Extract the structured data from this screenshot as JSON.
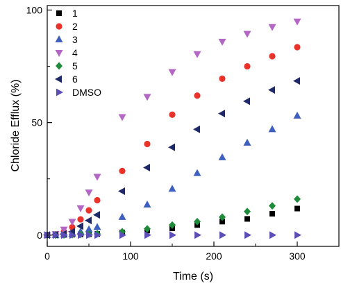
{
  "chart_data": {
    "type": "scatter",
    "title": "",
    "xlabel": "Time (s)",
    "ylabel": "Chloride Efflux (%)",
    "xlim": [
      0,
      350
    ],
    "ylim": [
      -5,
      102
    ],
    "x_ticks": [
      0,
      100,
      200,
      300
    ],
    "y_ticks": [
      0,
      50,
      100
    ],
    "x_minor_step": 50,
    "y_minor_step": 25,
    "grid": false,
    "legend_position": "top-left",
    "series": [
      {
        "name": "1",
        "marker": "square",
        "color": "#000000",
        "points": [
          [
            0,
            0
          ],
          [
            10,
            0
          ],
          [
            20,
            0.1
          ],
          [
            30,
            0.2
          ],
          [
            40,
            0.3
          ],
          [
            50,
            0.4
          ],
          [
            60,
            0.5
          ],
          [
            90,
            1.2
          ],
          [
            120,
            2
          ],
          [
            150,
            3
          ],
          [
            180,
            4.5
          ],
          [
            210,
            6
          ],
          [
            240,
            7.2
          ],
          [
            270,
            9.5
          ],
          [
            300,
            11.8
          ]
        ]
      },
      {
        "name": "2",
        "marker": "circle",
        "color": "#e8322a",
        "points": [
          [
            0,
            0
          ],
          [
            10,
            0.3
          ],
          [
            20,
            1.5
          ],
          [
            30,
            3.5
          ],
          [
            40,
            7
          ],
          [
            50,
            11
          ],
          [
            60,
            15.5
          ],
          [
            90,
            28.5
          ],
          [
            120,
            40.5
          ],
          [
            150,
            53.5
          ],
          [
            180,
            62
          ],
          [
            210,
            69.5
          ],
          [
            240,
            75
          ],
          [
            270,
            79.5
          ],
          [
            300,
            83.5
          ]
        ]
      },
      {
        "name": "3",
        "marker": "triangle-up",
        "color": "#3f5fbf",
        "points": [
          [
            0,
            0
          ],
          [
            10,
            0
          ],
          [
            20,
            0.2
          ],
          [
            30,
            0.5
          ],
          [
            40,
            1.5
          ],
          [
            50,
            2.5
          ],
          [
            60,
            3.5
          ],
          [
            90,
            8
          ],
          [
            120,
            13.5
          ],
          [
            150,
            20.5
          ],
          [
            180,
            27.5
          ],
          [
            210,
            34.5
          ],
          [
            240,
            41
          ],
          [
            270,
            47
          ],
          [
            300,
            53
          ]
        ]
      },
      {
        "name": "4",
        "marker": "triangle-down",
        "color": "#b466c4",
        "points": [
          [
            0,
            0
          ],
          [
            10,
            0.5
          ],
          [
            20,
            2.5
          ],
          [
            30,
            6
          ],
          [
            40,
            12
          ],
          [
            50,
            19
          ],
          [
            60,
            26
          ],
          [
            90,
            52.5
          ],
          [
            120,
            61.5
          ],
          [
            150,
            72.5
          ],
          [
            180,
            80.5
          ],
          [
            210,
            86
          ],
          [
            240,
            89.5
          ],
          [
            270,
            92.5
          ],
          [
            300,
            95
          ]
        ]
      },
      {
        "name": "5",
        "marker": "diamond",
        "color": "#1f8a3a",
        "points": [
          [
            0,
            0
          ],
          [
            10,
            0
          ],
          [
            20,
            0.1
          ],
          [
            30,
            0.2
          ],
          [
            40,
            0.3
          ],
          [
            50,
            0.4
          ],
          [
            60,
            0.6
          ],
          [
            90,
            1.5
          ],
          [
            120,
            2.8
          ],
          [
            150,
            4.5
          ],
          [
            180,
            6
          ],
          [
            210,
            8
          ],
          [
            240,
            10.5
          ],
          [
            270,
            13
          ],
          [
            300,
            16
          ]
        ]
      },
      {
        "name": "6",
        "marker": "triangle-left",
        "color": "#1f2a6b",
        "points": [
          [
            0,
            0
          ],
          [
            10,
            0.1
          ],
          [
            20,
            0.5
          ],
          [
            30,
            1.5
          ],
          [
            40,
            4
          ],
          [
            50,
            6.5
          ],
          [
            60,
            9
          ],
          [
            90,
            19.5
          ],
          [
            120,
            30
          ],
          [
            150,
            39
          ],
          [
            180,
            47
          ],
          [
            210,
            54
          ],
          [
            240,
            59.5
          ],
          [
            270,
            64.5
          ],
          [
            300,
            68.5
          ]
        ]
      },
      {
        "name": "DMSO",
        "marker": "triangle-right",
        "color": "#5b4fb5",
        "points": [
          [
            0,
            0
          ],
          [
            10,
            0
          ],
          [
            20,
            0
          ],
          [
            30,
            0
          ],
          [
            40,
            0
          ],
          [
            50,
            0
          ],
          [
            60,
            0
          ],
          [
            90,
            0
          ],
          [
            120,
            0
          ],
          [
            150,
            0
          ],
          [
            180,
            0
          ],
          [
            210,
            0
          ],
          [
            240,
            0
          ],
          [
            270,
            0
          ],
          [
            300,
            0
          ]
        ]
      }
    ]
  }
}
